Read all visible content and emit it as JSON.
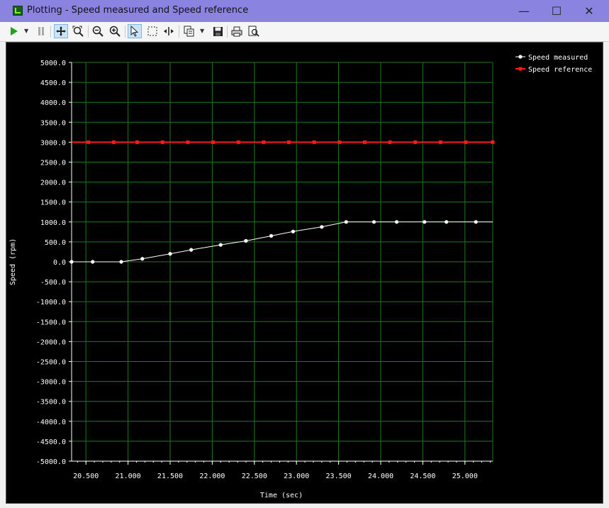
{
  "window": {
    "app_name": "Plotting",
    "title_separator": " - ",
    "plot_title": "Speed measured and Speed reference",
    "controls": {
      "minimize": "—",
      "maximize": "☐",
      "close": "✕"
    }
  },
  "toolbar": {
    "icons": [
      "play-icon",
      "play-dropdown-icon",
      "pause-icon",
      "pan-icon",
      "zoom-fit-icon",
      "zoom-out-icon",
      "zoom-in-icon",
      "select-pointer-icon",
      "select-rect-icon",
      "split-icon",
      "copy-icon",
      "copy-dropdown-icon",
      "save-icon",
      "print-icon",
      "print-preview-icon"
    ],
    "active": [
      "pan-icon",
      "select-pointer-icon"
    ]
  },
  "chart_data": {
    "type": "line",
    "title": "",
    "xlabel": "Time (sec)",
    "ylabel": "Speed (rpm)",
    "xlim": [
      20.33,
      25.33
    ],
    "ylim": [
      -5000,
      5000
    ],
    "x_ticks": [
      20.5,
      21.0,
      21.5,
      22.0,
      22.5,
      23.0,
      23.5,
      24.0,
      24.5,
      25.0
    ],
    "x_tick_labels": [
      "20.500",
      "21.000",
      "21.500",
      "22.000",
      "22.500",
      "23.000",
      "23.500",
      "24.000",
      "24.500",
      "25.000"
    ],
    "y_ticks": [
      5000,
      4500,
      4000,
      3500,
      3000,
      2500,
      2000,
      1500,
      1000,
      500,
      0,
      -500,
      -1000,
      -1500,
      -2000,
      -2500,
      -3000,
      -3500,
      -4000,
      -4500,
      -5000
    ],
    "y_tick_labels": [
      "5000.0",
      "4500.0",
      "4000.0",
      "3500.0",
      "3000.0",
      "2500.0",
      "2000.0",
      "1500.0",
      "1000.0",
      "500.0",
      "0.0",
      "-500.0",
      "-1000.0",
      "-1500.0",
      "-2000.0",
      "-2500.0",
      "-3000.0",
      "-3500.0",
      "-4000.0",
      "-4500.0",
      "-5000.0"
    ],
    "grid": true,
    "grid_color": "#1e7a1e",
    "legend_position": "top-right",
    "background": "#000000",
    "series": [
      {
        "name": "Speed measured",
        "color": "#ffffff",
        "marker": "circle",
        "x": [
          20.33,
          20.58,
          20.92,
          21.17,
          21.5,
          21.75,
          22.1,
          22.4,
          22.7,
          22.96,
          23.3,
          23.59,
          23.92,
          24.19,
          24.52,
          24.78,
          25.13,
          25.33
        ],
        "y": [
          0,
          0,
          0,
          75,
          200,
          300,
          425,
          525,
          650,
          760,
          875,
          1000,
          1000,
          1000,
          1000,
          1000,
          1000,
          1000
        ],
        "markers": [
          true,
          true,
          true,
          true,
          true,
          true,
          true,
          true,
          true,
          true,
          true,
          true,
          true,
          true,
          true,
          true,
          true,
          false
        ]
      },
      {
        "name": "Speed reference",
        "color": "#ff1a1a",
        "marker": "square",
        "x": [
          20.33,
          20.53,
          20.83,
          21.11,
          21.41,
          21.71,
          22.01,
          22.31,
          22.61,
          22.91,
          23.21,
          23.51,
          23.81,
          24.11,
          24.41,
          24.71,
          25.01,
          25.33
        ],
        "y": [
          3000,
          3000,
          3000,
          3000,
          3000,
          3000,
          3000,
          3000,
          3000,
          3000,
          3000,
          3000,
          3000,
          3000,
          3000,
          3000,
          3000,
          3000
        ],
        "markers": [
          false,
          true,
          true,
          true,
          true,
          true,
          true,
          true,
          true,
          true,
          true,
          true,
          true,
          true,
          true,
          true,
          true,
          true
        ]
      }
    ]
  }
}
